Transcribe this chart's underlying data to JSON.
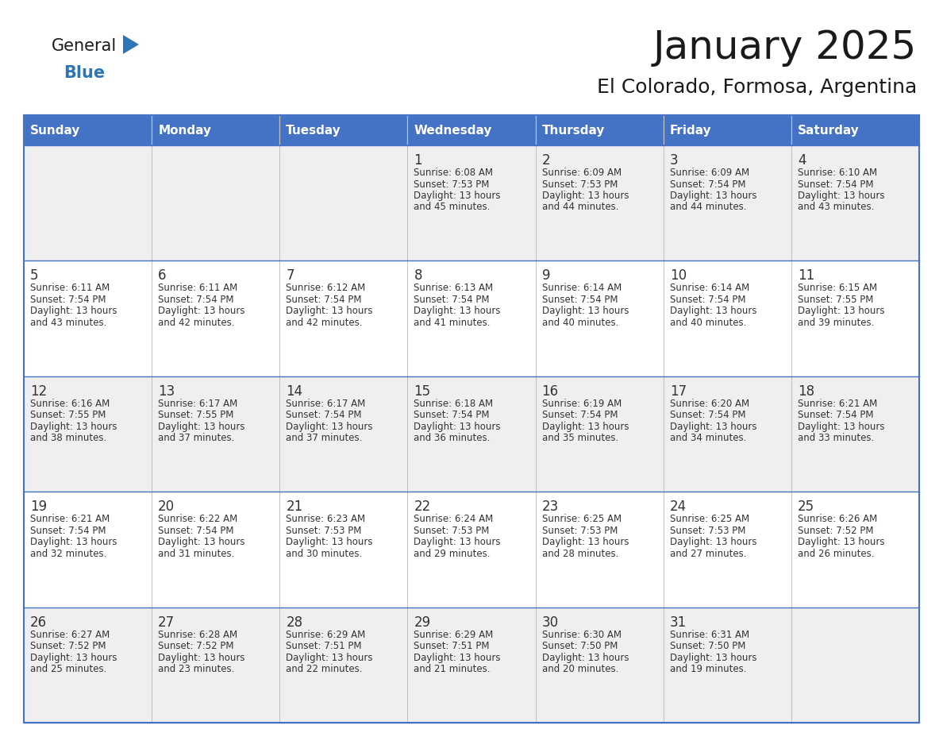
{
  "title": "January 2025",
  "subtitle": "El Colorado, Formosa, Argentina",
  "days_of_week": [
    "Sunday",
    "Monday",
    "Tuesday",
    "Wednesday",
    "Thursday",
    "Friday",
    "Saturday"
  ],
  "header_bg": "#4472C4",
  "header_text": "#FFFFFF",
  "row_bg_odd": "#EFEFEF",
  "row_bg_even": "#FFFFFF",
  "cell_border": "#4472C4",
  "day_num_color": "#333333",
  "text_color": "#333333",
  "title_color": "#1a1a1a",
  "logo_general_color": "#1a1a1a",
  "logo_blue_color": "#2E75B6",
  "logo_triangle_color": "#2E75B6",
  "calendar_data": [
    [
      null,
      null,
      null,
      {
        "day": 1,
        "sunrise": "6:08 AM",
        "sunset": "7:53 PM",
        "daylight": "13 hours",
        "daylight2": "and 45 minutes."
      },
      {
        "day": 2,
        "sunrise": "6:09 AM",
        "sunset": "7:53 PM",
        "daylight": "13 hours",
        "daylight2": "and 44 minutes."
      },
      {
        "day": 3,
        "sunrise": "6:09 AM",
        "sunset": "7:54 PM",
        "daylight": "13 hours",
        "daylight2": "and 44 minutes."
      },
      {
        "day": 4,
        "sunrise": "6:10 AM",
        "sunset": "7:54 PM",
        "daylight": "13 hours",
        "daylight2": "and 43 minutes."
      }
    ],
    [
      {
        "day": 5,
        "sunrise": "6:11 AM",
        "sunset": "7:54 PM",
        "daylight": "13 hours",
        "daylight2": "and 43 minutes."
      },
      {
        "day": 6,
        "sunrise": "6:11 AM",
        "sunset": "7:54 PM",
        "daylight": "13 hours",
        "daylight2": "and 42 minutes."
      },
      {
        "day": 7,
        "sunrise": "6:12 AM",
        "sunset": "7:54 PM",
        "daylight": "13 hours",
        "daylight2": "and 42 minutes."
      },
      {
        "day": 8,
        "sunrise": "6:13 AM",
        "sunset": "7:54 PM",
        "daylight": "13 hours",
        "daylight2": "and 41 minutes."
      },
      {
        "day": 9,
        "sunrise": "6:14 AM",
        "sunset": "7:54 PM",
        "daylight": "13 hours",
        "daylight2": "and 40 minutes."
      },
      {
        "day": 10,
        "sunrise": "6:14 AM",
        "sunset": "7:54 PM",
        "daylight": "13 hours",
        "daylight2": "and 40 minutes."
      },
      {
        "day": 11,
        "sunrise": "6:15 AM",
        "sunset": "7:55 PM",
        "daylight": "13 hours",
        "daylight2": "and 39 minutes."
      }
    ],
    [
      {
        "day": 12,
        "sunrise": "6:16 AM",
        "sunset": "7:55 PM",
        "daylight": "13 hours",
        "daylight2": "and 38 minutes."
      },
      {
        "day": 13,
        "sunrise": "6:17 AM",
        "sunset": "7:55 PM",
        "daylight": "13 hours",
        "daylight2": "and 37 minutes."
      },
      {
        "day": 14,
        "sunrise": "6:17 AM",
        "sunset": "7:54 PM",
        "daylight": "13 hours",
        "daylight2": "and 37 minutes."
      },
      {
        "day": 15,
        "sunrise": "6:18 AM",
        "sunset": "7:54 PM",
        "daylight": "13 hours",
        "daylight2": "and 36 minutes."
      },
      {
        "day": 16,
        "sunrise": "6:19 AM",
        "sunset": "7:54 PM",
        "daylight": "13 hours",
        "daylight2": "and 35 minutes."
      },
      {
        "day": 17,
        "sunrise": "6:20 AM",
        "sunset": "7:54 PM",
        "daylight": "13 hours",
        "daylight2": "and 34 minutes."
      },
      {
        "day": 18,
        "sunrise": "6:21 AM",
        "sunset": "7:54 PM",
        "daylight": "13 hours",
        "daylight2": "and 33 minutes."
      }
    ],
    [
      {
        "day": 19,
        "sunrise": "6:21 AM",
        "sunset": "7:54 PM",
        "daylight": "13 hours",
        "daylight2": "and 32 minutes."
      },
      {
        "day": 20,
        "sunrise": "6:22 AM",
        "sunset": "7:54 PM",
        "daylight": "13 hours",
        "daylight2": "and 31 minutes."
      },
      {
        "day": 21,
        "sunrise": "6:23 AM",
        "sunset": "7:53 PM",
        "daylight": "13 hours",
        "daylight2": "and 30 minutes."
      },
      {
        "day": 22,
        "sunrise": "6:24 AM",
        "sunset": "7:53 PM",
        "daylight": "13 hours",
        "daylight2": "and 29 minutes."
      },
      {
        "day": 23,
        "sunrise": "6:25 AM",
        "sunset": "7:53 PM",
        "daylight": "13 hours",
        "daylight2": "and 28 minutes."
      },
      {
        "day": 24,
        "sunrise": "6:25 AM",
        "sunset": "7:53 PM",
        "daylight": "13 hours",
        "daylight2": "and 27 minutes."
      },
      {
        "day": 25,
        "sunrise": "6:26 AM",
        "sunset": "7:52 PM",
        "daylight": "13 hours",
        "daylight2": "and 26 minutes."
      }
    ],
    [
      {
        "day": 26,
        "sunrise": "6:27 AM",
        "sunset": "7:52 PM",
        "daylight": "13 hours",
        "daylight2": "and 25 minutes."
      },
      {
        "day": 27,
        "sunrise": "6:28 AM",
        "sunset": "7:52 PM",
        "daylight": "13 hours",
        "daylight2": "and 23 minutes."
      },
      {
        "day": 28,
        "sunrise": "6:29 AM",
        "sunset": "7:51 PM",
        "daylight": "13 hours",
        "daylight2": "and 22 minutes."
      },
      {
        "day": 29,
        "sunrise": "6:29 AM",
        "sunset": "7:51 PM",
        "daylight": "13 hours",
        "daylight2": "and 21 minutes."
      },
      {
        "day": 30,
        "sunrise": "6:30 AM",
        "sunset": "7:50 PM",
        "daylight": "13 hours",
        "daylight2": "and 20 minutes."
      },
      {
        "day": 31,
        "sunrise": "6:31 AM",
        "sunset": "7:50 PM",
        "daylight": "13 hours",
        "daylight2": "and 19 minutes."
      },
      null
    ]
  ]
}
